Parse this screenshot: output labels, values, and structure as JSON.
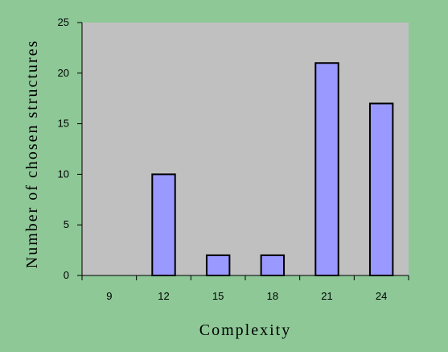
{
  "chart_data": {
    "type": "bar",
    "categories": [
      "9",
      "12",
      "15",
      "18",
      "21",
      "24"
    ],
    "values": [
      0,
      10,
      2,
      2,
      21,
      17
    ],
    "title": "",
    "xlabel": "Complexity",
    "ylabel": "Number of chosen structures",
    "ylim": [
      0,
      25
    ],
    "yticks": [
      "0",
      "5",
      "10",
      "15",
      "20",
      "25"
    ],
    "grid": false,
    "legend": "none",
    "colors": {
      "background": "#8DC896",
      "plot_area": "#C0C0C0",
      "bar_fill": "#9999FF",
      "bar_stroke": "#000000"
    }
  }
}
